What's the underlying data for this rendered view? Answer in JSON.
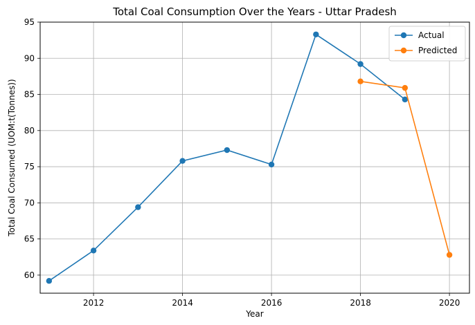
{
  "chart_data": {
    "type": "line",
    "title": "Total Coal Consumption Over the Years - Uttar Pradesh",
    "xlabel": "Year",
    "ylabel": "Total Coal Consumed (UOM:t(Tonnes))",
    "xlim": [
      2010.8,
      2020.45
    ],
    "ylim": [
      57.5,
      95
    ],
    "xticks": [
      2012,
      2014,
      2016,
      2018,
      2020
    ],
    "yticks": [
      60,
      65,
      70,
      75,
      80,
      85,
      90,
      95
    ],
    "grid": true,
    "legend_position": "top-right",
    "series": [
      {
        "name": "Actual",
        "color": "#1f77b4",
        "x": [
          2011,
          2012,
          2013,
          2014,
          2015,
          2016,
          2017,
          2018,
          2019
        ],
        "values": [
          59.2,
          63.4,
          69.4,
          75.8,
          77.3,
          75.3,
          93.3,
          89.2,
          84.3
        ]
      },
      {
        "name": "Predicted",
        "color": "#ff7f0e",
        "x": [
          2018,
          2019,
          2020
        ],
        "values": [
          86.8,
          85.9,
          62.8
        ]
      }
    ]
  }
}
